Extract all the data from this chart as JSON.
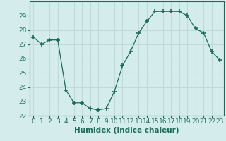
{
  "x": [
    0,
    1,
    2,
    3,
    4,
    5,
    6,
    7,
    8,
    9,
    10,
    11,
    12,
    13,
    14,
    15,
    16,
    17,
    18,
    19,
    20,
    21,
    22,
    23
  ],
  "y": [
    27.5,
    27.0,
    27.3,
    27.3,
    23.8,
    22.9,
    22.9,
    22.5,
    22.4,
    22.5,
    23.7,
    25.5,
    26.5,
    27.8,
    28.6,
    29.3,
    29.3,
    29.3,
    29.3,
    29.0,
    28.1,
    27.8,
    26.5,
    25.9
  ],
  "xlabel": "Humidex (Indice chaleur)",
  "xlim": [
    -0.5,
    23.5
  ],
  "ylim": [
    22,
    30
  ],
  "yticks": [
    22,
    23,
    24,
    25,
    26,
    27,
    28,
    29
  ],
  "xticks": [
    0,
    1,
    2,
    3,
    4,
    5,
    6,
    7,
    8,
    9,
    10,
    11,
    12,
    13,
    14,
    15,
    16,
    17,
    18,
    19,
    20,
    21,
    22,
    23
  ],
  "line_color": "#1a6b5a",
  "marker": "+",
  "marker_size": 4,
  "bg_color": "#d4edec",
  "grid_color": "#c0dada",
  "tick_label_fontsize": 6.5,
  "xlabel_fontsize": 7.5
}
